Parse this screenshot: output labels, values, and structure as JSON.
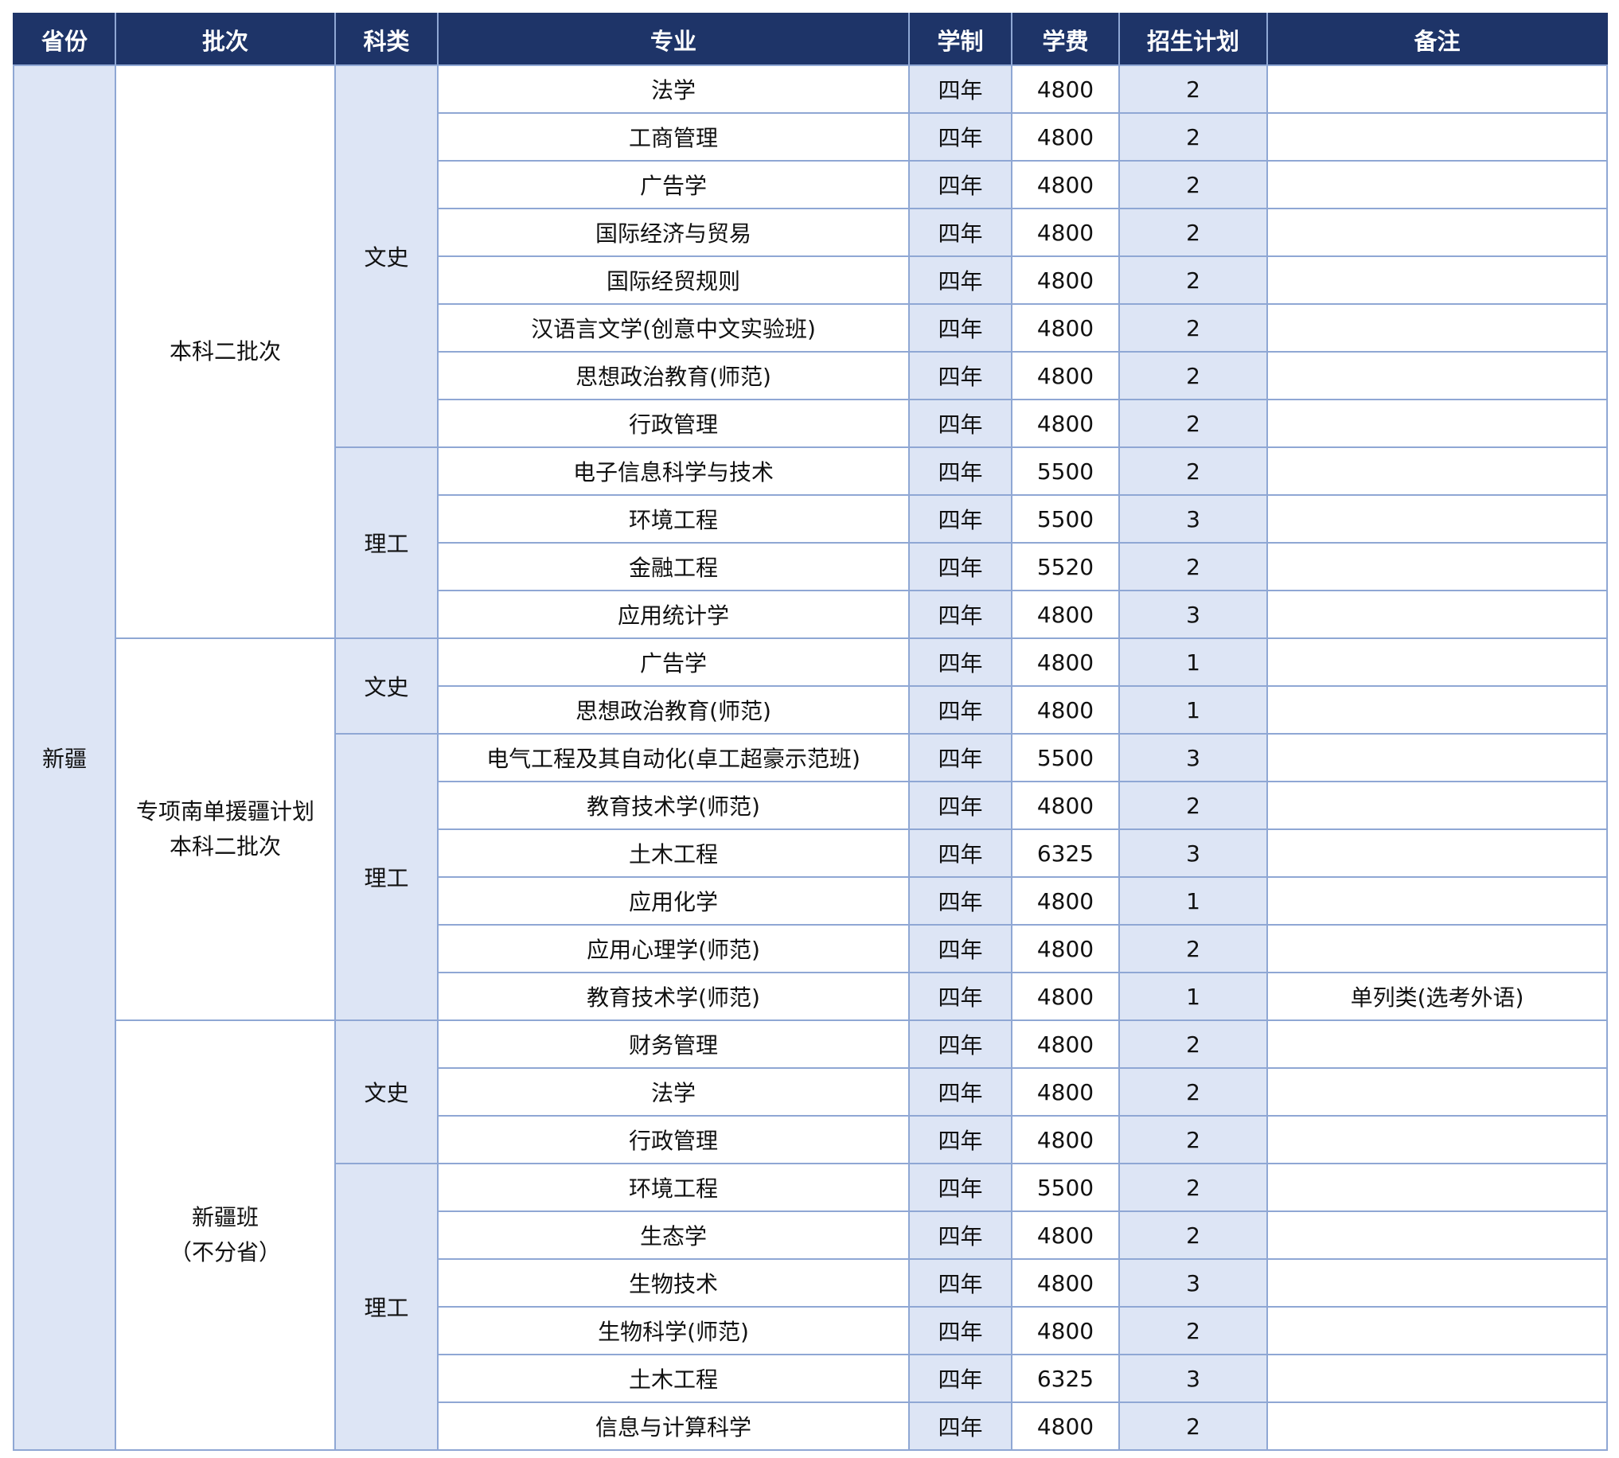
{
  "header": [
    "省份",
    "批次",
    "科类",
    "专业",
    "学制",
    "学费",
    "招生计划",
    "备注"
  ],
  "province": "新疆",
  "groups": [
    {
      "batch": [
        "本科二批次"
      ],
      "categories": [
        {
          "name": "文史",
          "rows": [
            [
              "法学",
              "四年",
              "4800",
              "2",
              ""
            ],
            [
              "工商管理",
              "四年",
              "4800",
              "2",
              ""
            ],
            [
              "广告学",
              "四年",
              "4800",
              "2",
              ""
            ],
            [
              "国际经济与贸易",
              "四年",
              "4800",
              "2",
              ""
            ],
            [
              "国际经贸规则",
              "四年",
              "4800",
              "2",
              ""
            ],
            [
              "汉语言文学(创意中文实验班)",
              "四年",
              "4800",
              "2",
              ""
            ],
            [
              "思想政治教育(师范)",
              "四年",
              "4800",
              "2",
              ""
            ],
            [
              "行政管理",
              "四年",
              "4800",
              "2",
              ""
            ]
          ]
        },
        {
          "name": "理工",
          "rows": [
            [
              "电子信息科学与技术",
              "四年",
              "5500",
              "2",
              ""
            ],
            [
              "环境工程",
              "四年",
              "5500",
              "3",
              ""
            ],
            [
              "金融工程",
              "四年",
              "5520",
              "2",
              ""
            ],
            [
              "应用统计学",
              "四年",
              "4800",
              "3",
              ""
            ]
          ]
        }
      ]
    },
    {
      "batch": [
        "专项南单援疆计划",
        "本科二批次"
      ],
      "categories": [
        {
          "name": "文史",
          "rows": [
            [
              "广告学",
              "四年",
              "4800",
              "1",
              ""
            ],
            [
              "思想政治教育(师范)",
              "四年",
              "4800",
              "1",
              ""
            ]
          ]
        },
        {
          "name": "理工",
          "rows": [
            [
              "电气工程及其自动化(卓工超豪示范班)",
              "四年",
              "5500",
              "3",
              ""
            ],
            [
              "教育技术学(师范)",
              "四年",
              "4800",
              "2",
              ""
            ],
            [
              "土木工程",
              "四年",
              "6325",
              "3",
              ""
            ],
            [
              "应用化学",
              "四年",
              "4800",
              "1",
              ""
            ],
            [
              "应用心理学(师范)",
              "四年",
              "4800",
              "2",
              ""
            ],
            [
              "教育技术学(师范)",
              "四年",
              "4800",
              "1",
              "单列类(选考外语)"
            ]
          ]
        }
      ]
    },
    {
      "batch": [
        "新疆班",
        "（不分省）"
      ],
      "categories": [
        {
          "name": "文史",
          "rows": [
            [
              "财务管理",
              "四年",
              "4800",
              "2",
              ""
            ],
            [
              "法学",
              "四年",
              "4800",
              "2",
              ""
            ],
            [
              "行政管理",
              "四年",
              "4800",
              "2",
              ""
            ]
          ]
        },
        {
          "name": "理工",
          "rows": [
            [
              "环境工程",
              "四年",
              "5500",
              "2",
              ""
            ],
            [
              "生态学",
              "四年",
              "4800",
              "2",
              ""
            ],
            [
              "生物技术",
              "四年",
              "4800",
              "3",
              ""
            ],
            [
              "生物科学(师范)",
              "四年",
              "4800",
              "2",
              ""
            ],
            [
              "土木工程",
              "四年",
              "6325",
              "3",
              ""
            ],
            [
              "信息与计算科学",
              "四年",
              "4800",
              "2",
              ""
            ]
          ]
        }
      ]
    }
  ],
  "colors": {
    "header_bg": "#1e3468",
    "shade": "#dde5f5",
    "border": "#8fa7d4"
  }
}
